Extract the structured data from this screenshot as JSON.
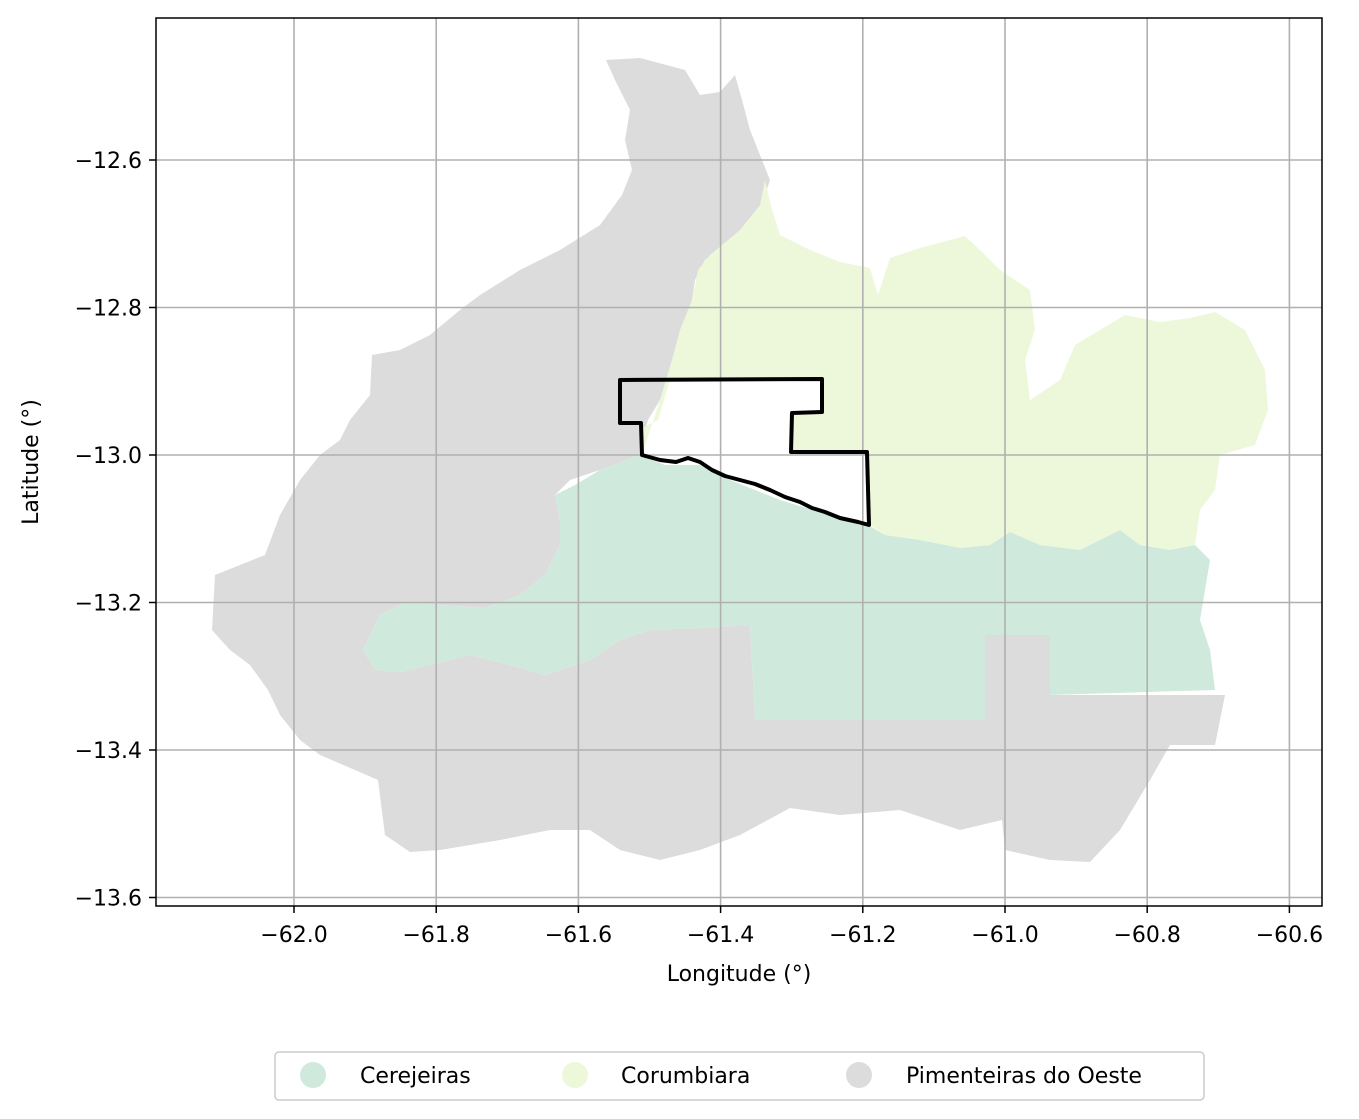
{
  "map": {
    "xlabel": "Longitude (°)",
    "ylabel": "Latitude (°)",
    "x_ticks": [
      {
        "value": -62.0,
        "label": "−62.0"
      },
      {
        "value": -61.8,
        "label": "−61.8"
      },
      {
        "value": -61.6,
        "label": "−61.6"
      },
      {
        "value": -61.4,
        "label": "−61.4"
      },
      {
        "value": -61.2,
        "label": "−61.2"
      },
      {
        "value": -61.0,
        "label": "−61.0"
      },
      {
        "value": -60.8,
        "label": "−60.8"
      },
      {
        "value": -60.6,
        "label": "−60.6"
      }
    ],
    "y_ticks": [
      {
        "value": -12.6,
        "label": "−12.6"
      },
      {
        "value": -12.8,
        "label": "−12.8"
      },
      {
        "value": -13.0,
        "label": "−13.0"
      },
      {
        "value": -13.2,
        "label": "−13.2"
      },
      {
        "value": -13.4,
        "label": "−13.4"
      },
      {
        "value": -13.6,
        "label": "−13.6"
      }
    ],
    "grid": true,
    "legend_position": "bottom-center",
    "regions": [
      {
        "name": "Cerejeiras",
        "color": "#cfeadd"
      },
      {
        "name": "Corumbiara",
        "color": "#edf8da"
      },
      {
        "name": "Pimenteiras do Oeste",
        "color": "#dcdcdc"
      }
    ],
    "outline_color": "#000000"
  }
}
